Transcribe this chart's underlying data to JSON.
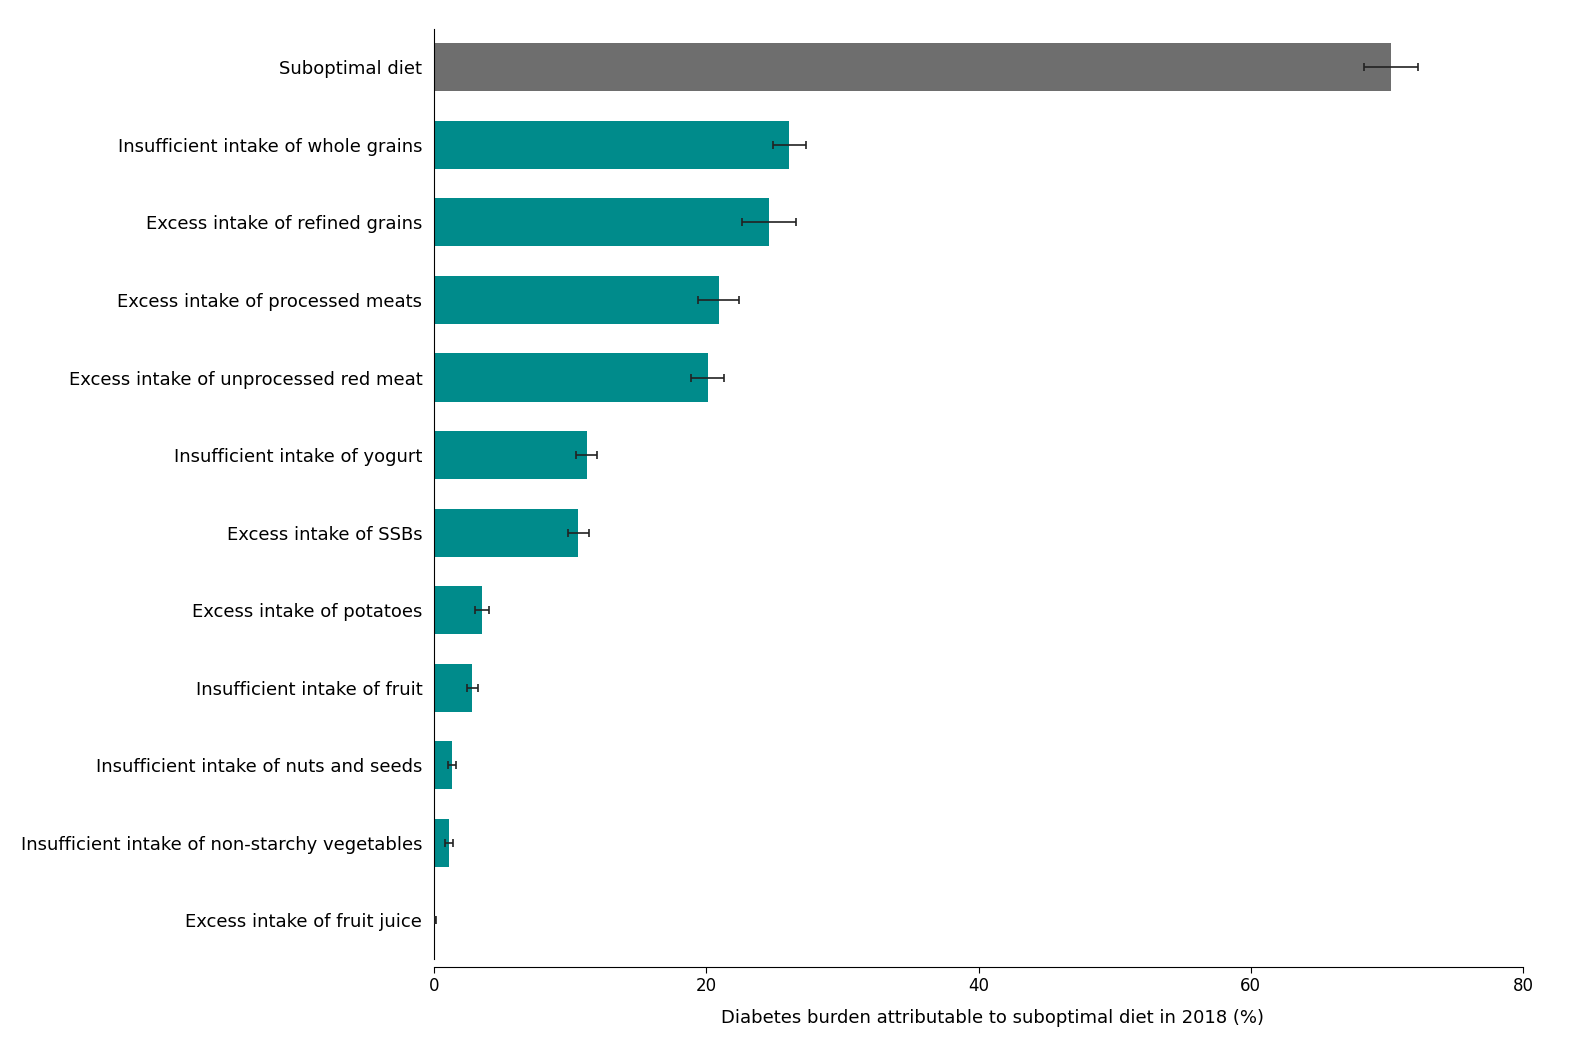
{
  "categories": [
    "Excess intake of fruit juice",
    "Insufficient intake of non-starchy vegetables",
    "Insufficient intake of nuts and seeds",
    "Insufficient intake of fruit",
    "Excess intake of potatoes",
    "Excess intake of SSBs",
    "Insufficient intake of yogurt",
    "Excess intake of unprocessed red meat",
    "Excess intake of processed meats",
    "Excess intake of refined grains",
    "Insufficient intake of whole grains",
    "Suboptimal diet"
  ],
  "values": [
    0.1,
    1.1,
    1.3,
    2.8,
    3.5,
    10.6,
    11.2,
    20.1,
    20.9,
    24.6,
    26.1,
    70.3
  ],
  "error_lower": [
    0.05,
    0.3,
    0.3,
    0.4,
    0.5,
    0.8,
    0.8,
    1.2,
    1.5,
    2.0,
    1.2,
    2.0
  ],
  "error_upper": [
    0.05,
    0.3,
    0.3,
    0.4,
    0.5,
    0.8,
    0.8,
    1.2,
    1.5,
    2.0,
    1.2,
    2.0
  ],
  "bar_colors": [
    "#008B8B",
    "#008B8B",
    "#008B8B",
    "#008B8B",
    "#008B8B",
    "#008B8B",
    "#008B8B",
    "#008B8B",
    "#008B8B",
    "#008B8B",
    "#008B8B",
    "#6E6E6E"
  ],
  "xlabel": "Diabetes burden attributable to suboptimal diet in 2018 (%)",
  "xlim": [
    0,
    82
  ],
  "xticks": [
    0,
    20,
    40,
    60,
    80
  ],
  "background_color": "#ffffff",
  "bar_height": 0.62,
  "errorbar_capsize": 3,
  "errorbar_linewidth": 1.2,
  "errorbar_color": "#222222",
  "xlabel_fontsize": 13,
  "tick_fontsize": 12,
  "label_fontsize": 13
}
